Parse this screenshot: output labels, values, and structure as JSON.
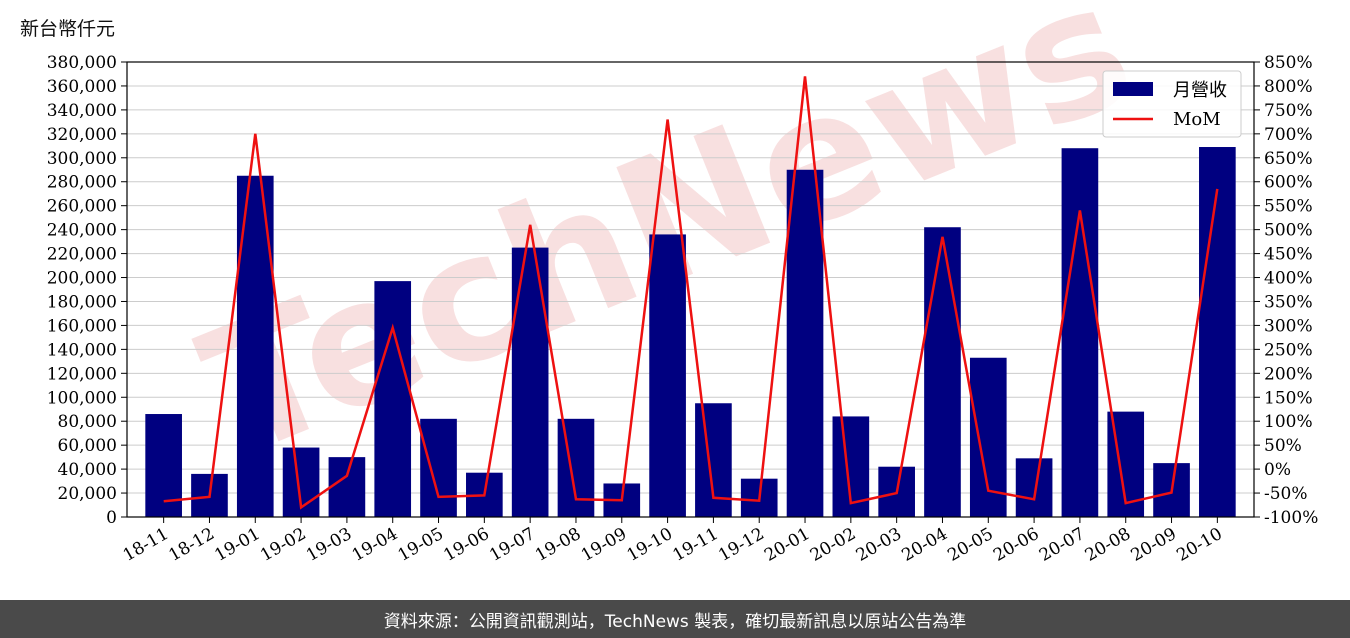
{
  "footer": {
    "source": "資料來源：公開資訊觀測站，TechNews 製表，確切最新訊息以原站公告為準"
  },
  "watermark": "TechNews",
  "colors": {
    "bar": "#000080",
    "line": "#ee1111",
    "grid": "#cccccc",
    "watermark": "#f2c6c6",
    "footer_bg": "#4a4a4a"
  },
  "chart_data": {
    "type": "bar",
    "unit_label": "新台幣仟元",
    "categories": [
      "18-11",
      "18-12",
      "19-01",
      "19-02",
      "19-03",
      "19-04",
      "19-05",
      "19-06",
      "19-07",
      "19-08",
      "19-09",
      "19-10",
      "19-11",
      "19-12",
      "20-01",
      "20-02",
      "20-03",
      "20-04",
      "20-05",
      "20-06",
      "20-07",
      "20-08",
      "20-09",
      "20-10"
    ],
    "series": [
      {
        "name": "月營收",
        "type": "bar",
        "axis": "left",
        "values": [
          86000,
          36000,
          285000,
          58000,
          50000,
          197000,
          82000,
          37000,
          225000,
          82000,
          28000,
          236000,
          95000,
          32000,
          290000,
          84000,
          42000,
          242000,
          133000,
          49000,
          308000,
          88000,
          45000,
          309000
        ]
      },
      {
        "name": "MoM",
        "type": "line",
        "axis": "right",
        "values": [
          -67,
          -58,
          700,
          -80,
          -14,
          295,
          -58,
          -55,
          510,
          -63,
          -65,
          730,
          -60,
          -66,
          820,
          -71,
          -50,
          485,
          -45,
          -63,
          540,
          -71,
          -49,
          585
        ]
      }
    ],
    "y_left": {
      "lim": [
        0,
        380000
      ],
      "ticks": [
        0,
        20000,
        40000,
        60000,
        80000,
        100000,
        120000,
        140000,
        160000,
        180000,
        200000,
        220000,
        240000,
        260000,
        280000,
        300000,
        320000,
        340000,
        360000,
        380000
      ],
      "tick_labels": [
        "0",
        "20,000",
        "40,000",
        "60,000",
        "80,000",
        "100,000",
        "120,000",
        "140,000",
        "160,000",
        "180,000",
        "200,000",
        "220,000",
        "240,000",
        "260,000",
        "280,000",
        "300,000",
        "320,000",
        "340,000",
        "360,000",
        "380,000"
      ]
    },
    "y_right": {
      "lim": [
        -100,
        850
      ],
      "ticks": [
        -100,
        -50,
        0,
        50,
        100,
        150,
        200,
        250,
        300,
        350,
        400,
        450,
        500,
        550,
        600,
        650,
        700,
        750,
        800,
        850
      ],
      "tick_labels": [
        "-100%",
        "-50%",
        "0%",
        "50%",
        "100%",
        "150%",
        "200%",
        "250%",
        "300%",
        "350%",
        "400%",
        "450%",
        "500%",
        "550%",
        "600%",
        "650%",
        "700%",
        "750%",
        "800%",
        "850%"
      ]
    },
    "grid": "horizontal",
    "legend_placement": "top-right"
  }
}
